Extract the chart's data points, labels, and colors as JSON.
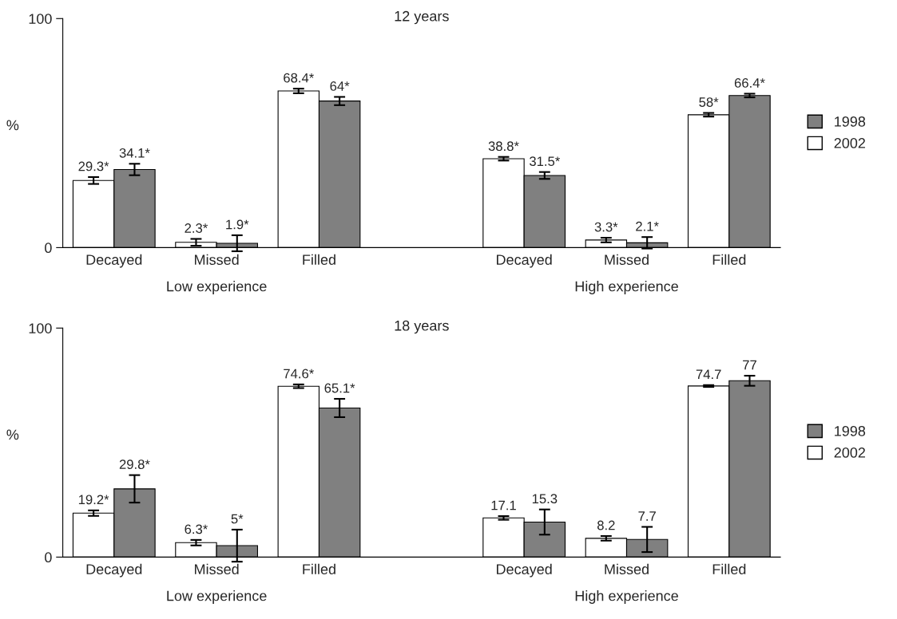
{
  "chart_data": [
    {
      "type": "bar",
      "title": "12 years",
      "ylabel": "%",
      "categories": [
        "Decayed",
        "Missed",
        "Filled",
        null,
        "Decayed",
        "Missed",
        "Filled"
      ],
      "ylim": [
        0,
        100
      ],
      "yticks": [
        0,
        100
      ],
      "grid": false,
      "legend": "right",
      "series": [
        {
          "name": "2002",
          "color": "#ffffff",
          "values": [
            29.3,
            2.3,
            68.4,
            null,
            38.8,
            3.3,
            58
          ],
          "errors": [
            1.5,
            1.5,
            1,
            null,
            0.8,
            1,
            0.8
          ],
          "value_labels": [
            "29.3*",
            "2.3*",
            "68.4*",
            null,
            "38.8*",
            "3.3*",
            "58*"
          ]
        },
        {
          "name": "1998",
          "color": "#808080",
          "values": [
            34.1,
            1.9,
            64,
            null,
            31.5,
            2.1,
            66.4
          ],
          "errors": [
            2.5,
            3.5,
            1.8,
            null,
            1.5,
            2.5,
            0.8
          ],
          "value_labels": [
            "34.1*",
            "1.9*",
            "64*",
            null,
            "31.5*",
            "2.1*",
            "66.4*"
          ]
        }
      ],
      "annotations": [
        "Low experience",
        "High experience"
      ]
    },
    {
      "type": "bar",
      "title": "18 years",
      "ylabel": "%",
      "categories": [
        "Decayed",
        "Missed",
        "Filled",
        null,
        "Decayed",
        "Missed",
        "Filled"
      ],
      "ylim": [
        0,
        100
      ],
      "yticks": [
        0,
        100
      ],
      "grid": false,
      "legend": "right",
      "series": [
        {
          "name": "2002",
          "color": "#ffffff",
          "values": [
            19.2,
            6.3,
            74.6,
            null,
            17.1,
            8.2,
            74.7
          ],
          "errors": [
            1.2,
            1.2,
            0.8,
            null,
            0.8,
            1,
            0.4
          ],
          "value_labels": [
            "19.2*",
            "6.3*",
            "74.6*",
            null,
            "17.1",
            "8.2",
            "74.7"
          ]
        },
        {
          "name": "1998",
          "color": "#808080",
          "values": [
            29.8,
            5,
            65.1,
            null,
            15.3,
            7.7,
            77
          ],
          "errors": [
            6,
            7,
            4,
            null,
            5.5,
            5.5,
            2.2
          ],
          "value_labels": [
            "29.8*",
            "5*",
            "65.1*",
            null,
            "15.3",
            "7.7",
            "77"
          ]
        }
      ],
      "annotations": [
        "Low experience",
        "High experience"
      ]
    }
  ]
}
